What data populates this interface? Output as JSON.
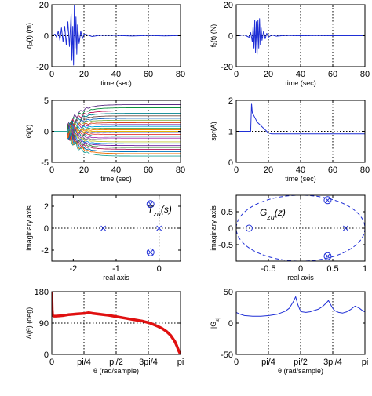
{
  "colors": {
    "blue": "#1f2fd6",
    "red": "#e01010",
    "black": "#000000"
  },
  "chart_data": [
    {
      "id": "p1",
      "type": "line",
      "ylabel": "q₂(t) (m)",
      "xlabel": "time (sec)",
      "xlim": [
        0,
        80
      ],
      "ylim": [
        -20,
        20
      ],
      "xticks": [
        0,
        20,
        40,
        60,
        80
      ],
      "yticks": [
        20,
        0,
        -20
      ],
      "vlines": [
        20,
        40,
        60
      ],
      "hlines": [
        0
      ],
      "series": [
        {
          "color": "#1f2fd6",
          "x": [
            0,
            2,
            3,
            4,
            5,
            6,
            7,
            8,
            9,
            10,
            11,
            12,
            12.5,
            13,
            13.5,
            14,
            14.5,
            15,
            15.5,
            16,
            17,
            18,
            19,
            20,
            22,
            25,
            30,
            40,
            50,
            60,
            70,
            80
          ],
          "y": [
            0,
            1,
            -1,
            3,
            -3,
            5,
            -4,
            6,
            -6,
            9,
            -7,
            14,
            -16,
            6,
            -19,
            20,
            -8,
            12,
            -12,
            7,
            -5,
            3,
            -2,
            1,
            0.6,
            -0.5,
            0.3,
            0.2,
            -0.2,
            0.2,
            -0.1,
            0.1
          ]
        }
      ]
    },
    {
      "id": "p2",
      "type": "line",
      "ylabel": "f₂(t) (N)",
      "xlabel": "time (sec)",
      "xlim": [
        0,
        80
      ],
      "ylim": [
        -20,
        20
      ],
      "xticks": [
        0,
        20,
        40,
        60,
        80
      ],
      "yticks": [
        20,
        0,
        -20
      ],
      "vlines": [
        20,
        40,
        60
      ],
      "hlines": [
        0
      ],
      "series": [
        {
          "color": "#1f2fd6",
          "x": [
            0,
            5,
            8,
            9,
            10,
            10.5,
            11,
            11.5,
            12,
            12.5,
            13,
            13.5,
            14,
            14.5,
            15,
            15.5,
            16,
            17,
            18,
            19,
            20,
            22,
            25,
            30,
            40,
            50,
            60,
            70,
            80
          ],
          "y": [
            0,
            0.5,
            -1,
            2,
            -4,
            6,
            -8,
            10,
            -11,
            9,
            -12,
            10,
            -8,
            11,
            -6,
            5,
            -3,
            3,
            -2,
            1.5,
            -1,
            0.5,
            -0.3,
            0.2,
            0,
            0.1,
            0,
            0,
            0
          ]
        }
      ]
    },
    {
      "id": "p3",
      "type": "line",
      "ylabel": "Θ(k)",
      "xlabel": "time (sec)",
      "xlim": [
        0,
        80
      ],
      "ylim": [
        -5,
        5
      ],
      "xticks": [
        0,
        20,
        40,
        60,
        80
      ],
      "yticks": [
        5,
        0,
        -5
      ],
      "vlines": [
        20,
        40,
        60
      ],
      "hlines": [],
      "fan_start": 10,
      "series": [
        {
          "color": "#e3b400",
          "final": 0
        },
        {
          "color": "#5b2c83",
          "final": 4.3
        },
        {
          "color": "#0a8f3c",
          "final": 3.8
        },
        {
          "color": "#c2185b",
          "final": 3.3
        },
        {
          "color": "#00838f",
          "final": 2.9
        },
        {
          "color": "#6d4c41",
          "final": 2.5
        },
        {
          "color": "#1565c0",
          "final": 2.1
        },
        {
          "color": "#7cb342",
          "final": 1.8
        },
        {
          "color": "#d84315",
          "final": 1.4
        },
        {
          "color": "#8e24aa",
          "final": 1.1
        },
        {
          "color": "#00a3e0",
          "final": 0.8
        },
        {
          "color": "#43a047",
          "final": 0.5
        },
        {
          "color": "#f57c00",
          "final": 0.25
        },
        {
          "color": "#3949ab",
          "final": -0.2
        },
        {
          "color": "#e53935",
          "final": -0.5
        },
        {
          "color": "#00897b",
          "final": -0.8
        },
        {
          "color": "#9c27b0",
          "final": -1.1
        },
        {
          "color": "#757575",
          "final": -1.4
        },
        {
          "color": "#c0ca33",
          "final": -1.7
        },
        {
          "color": "#1e88e5",
          "final": -2.0
        },
        {
          "color": "#6a1b9a",
          "final": -2.3
        },
        {
          "color": "#2e7d32",
          "final": -2.6
        },
        {
          "color": "#ad1457",
          "final": -2.9
        },
        {
          "color": "#0277bd",
          "final": -3.3
        },
        {
          "color": "#ef6c00",
          "final": -3.6
        },
        {
          "color": "#26a69a",
          "final": -4.0
        }
      ]
    },
    {
      "id": "p4",
      "type": "line",
      "ylabel": "spr(Â)",
      "xlabel": "time (sec)",
      "xlim": [
        0,
        80
      ],
      "ylim": [
        0,
        2
      ],
      "xticks": [
        0,
        20,
        40,
        60,
        80
      ],
      "yticks": [
        2,
        1,
        0
      ],
      "vlines": [
        20,
        40,
        60
      ],
      "hlines": [
        1
      ],
      "series": [
        {
          "color": "#1f2fd6",
          "x": [
            0,
            9,
            9.5,
            10,
            11,
            12,
            13,
            14,
            15,
            16,
            17,
            18,
            19,
            20,
            21,
            22,
            25,
            30,
            40,
            50,
            60,
            70,
            80
          ],
          "y": [
            1,
            1,
            1.9,
            1.6,
            1.5,
            1.4,
            1.3,
            1.25,
            1.2,
            1.15,
            1.1,
            1.05,
            1.0,
            0.95,
            0.93,
            0.92,
            0.92,
            0.92,
            0.92,
            0.92,
            0.92,
            0.92,
            0.92
          ]
        }
      ]
    },
    {
      "id": "p5",
      "type": "scatter",
      "ylabel": "imaginary axis",
      "xlabel": "real axis",
      "annotation": "T_{zu}(s)",
      "xlim": [
        -2.5,
        0.5
      ],
      "ylim": [
        -3,
        3
      ],
      "xticks": [
        -2,
        -1,
        0
      ],
      "yticks": [
        2,
        0,
        -2
      ],
      "vlines": [
        0
      ],
      "hlines": [
        0
      ],
      "poles": [
        {
          "x": -1.3,
          "y": 0
        },
        {
          "x": 0,
          "y": 0
        }
      ],
      "zeros_poles": [
        {
          "x": -0.2,
          "y": 2.2
        },
        {
          "x": -0.2,
          "y": -2.2
        }
      ]
    },
    {
      "id": "p6",
      "type": "scatter",
      "ylabel": "imaginary axis",
      "xlabel": "real axis",
      "annotation": "G_{zu}(z)",
      "xlim": [
        -1,
        1
      ],
      "ylim": [
        -1,
        1
      ],
      "xticks": [
        -0.5,
        0,
        0.5,
        1
      ],
      "yticks": [
        0.5,
        0,
        -0.5
      ],
      "vlines": [
        0
      ],
      "hlines": [
        0
      ],
      "unit_circle": true,
      "zeros": [
        {
          "x": -0.8,
          "y": 0
        }
      ],
      "poles": [
        {
          "x": 0.7,
          "y": 0
        }
      ],
      "zeros_poles": [
        {
          "x": 0.42,
          "y": 0.85
        },
        {
          "x": 0.42,
          "y": -0.85
        }
      ]
    },
    {
      "id": "p7",
      "type": "line",
      "ylabel": "Δ(θ) (deg)",
      "xlabel": "θ (rad/sample)",
      "xlim": [
        0,
        3.1416
      ],
      "ylim": [
        0,
        180
      ],
      "xticks": [
        0,
        0.7854,
        1.5708,
        2.3562,
        3.1416
      ],
      "xticklabels": [
        "0",
        "pi/4",
        "pi/2",
        "3pi/4",
        "pi"
      ],
      "yticks": [
        180,
        90,
        0
      ],
      "vlines": [
        0.7854,
        1.5708,
        2.3562
      ],
      "hlines": [
        90
      ],
      "series": [
        {
          "color": "#e01010",
          "x": [
            0,
            0.01,
            0.02,
            0.05,
            0.1,
            0.2,
            0.3,
            0.4,
            0.5,
            0.6,
            0.7,
            0.8,
            0.9,
            1.0,
            1.2,
            1.4,
            1.6,
            1.8,
            2.0,
            2.2,
            2.4,
            2.6,
            2.7,
            2.8,
            2.9,
            3.0,
            3.05,
            3.1,
            3.1416
          ],
          "y": [
            180,
            130,
            112,
            110,
            110,
            111,
            112,
            114,
            115,
            116,
            117,
            118,
            120,
            118,
            115,
            112,
            108,
            104,
            100,
            96,
            90,
            80,
            74,
            66,
            55,
            38,
            25,
            10,
            0
          ]
        }
      ]
    },
    {
      "id": "p8",
      "type": "line",
      "ylabel": "|G_ε|",
      "xlabel": "θ (rad/sample)",
      "xlim": [
        0,
        3.1416
      ],
      "ylim": [
        -50,
        50
      ],
      "xticks": [
        0,
        0.7854,
        1.5708,
        2.3562,
        3.1416
      ],
      "xticklabels": [
        "0",
        "pi/4",
        "pi/2",
        "3pi/4",
        "pi"
      ],
      "yticks": [
        50,
        0,
        -50
      ],
      "vlines": [
        0.7854,
        1.5708,
        2.3562
      ],
      "hlines": [],
      "series": [
        {
          "color": "#1f2fd6",
          "x": [
            0,
            0.1,
            0.2,
            0.4,
            0.6,
            0.8,
            1.0,
            1.2,
            1.3,
            1.4,
            1.45,
            1.5,
            1.55,
            1.6,
            1.7,
            1.8,
            1.9,
            2.0,
            2.1,
            2.2,
            2.25,
            2.3,
            2.35,
            2.4,
            2.5,
            2.6,
            2.7,
            2.8,
            2.9,
            3.0,
            3.1,
            3.1416
          ],
          "y": [
            17,
            14,
            12,
            11,
            11,
            12,
            14,
            19,
            24,
            35,
            42,
            30,
            22,
            18,
            17,
            18,
            20,
            22,
            26,
            32,
            36,
            30,
            24,
            20,
            17,
            16,
            18,
            22,
            27,
            24,
            19,
            18
          ]
        }
      ]
    }
  ]
}
